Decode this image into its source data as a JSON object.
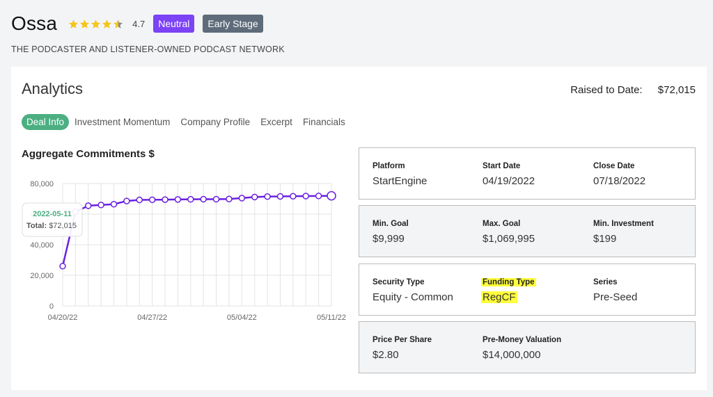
{
  "header": {
    "company_name": "Ossa",
    "rating": "4.7",
    "badges": [
      "Neutral",
      "Early Stage"
    ],
    "tagline": "THE PODCASTER AND LISTENER-OWNED PODCAST NETWORK"
  },
  "analytics": {
    "title": "Analytics",
    "raised_label": "Raised to Date:",
    "raised_value": "$72,015",
    "tabs": [
      "Deal Info",
      "Investment Momentum",
      "Company Profile",
      "Excerpt",
      "Financials"
    ],
    "active_tab": "Deal Info"
  },
  "colors": {
    "accent": "#7b42f6",
    "tab_active": "#4caf82",
    "highlight": "#ffff3b",
    "star": "#f5c518"
  },
  "chart_data": {
    "type": "line",
    "title": "Aggregate Commitments $",
    "x_tick_labels": [
      "04/20/22",
      "04/27/22",
      "05/04/22",
      "05/11/22"
    ],
    "y_tick_labels": [
      "0",
      "20,000",
      "40,000",
      "60,000",
      "80,000"
    ],
    "ylim": [
      0,
      80000
    ],
    "x": [
      "2022-04-20",
      "2022-04-21",
      "2022-04-22",
      "2022-04-23",
      "2022-04-24",
      "2022-04-25",
      "2022-04-26",
      "2022-04-27",
      "2022-04-28",
      "2022-04-29",
      "2022-04-30",
      "2022-05-01",
      "2022-05-02",
      "2022-05-03",
      "2022-05-04",
      "2022-05-05",
      "2022-05-06",
      "2022-05-07",
      "2022-05-08",
      "2022-05-09",
      "2022-05-10",
      "2022-05-11"
    ],
    "values": [
      26000,
      61500,
      65500,
      66000,
      66500,
      68600,
      69300,
      69400,
      69500,
      69600,
      69700,
      69800,
      69800,
      69900,
      70500,
      71200,
      71500,
      71600,
      71700,
      71800,
      71900,
      72015
    ],
    "grid": true,
    "line_color": "#6a1fe0",
    "tooltip": {
      "date": "2022-05-11",
      "label": "Total:",
      "value": "$72,015"
    }
  },
  "deal_info": [
    [
      {
        "label": "Platform",
        "value": "StartEngine"
      },
      {
        "label": "Start Date",
        "value": "04/19/2022"
      },
      {
        "label": "Close Date",
        "value": "07/18/2022"
      }
    ],
    [
      {
        "label": "Min. Goal",
        "value": "$9,999"
      },
      {
        "label": "Max. Goal",
        "value": "$1,069,995"
      },
      {
        "label": "Min. Investment",
        "value": "$199"
      }
    ],
    [
      {
        "label": "Security Type",
        "value": "Equity - Common"
      },
      {
        "label": "Funding Type",
        "value": "RegCF"
      },
      {
        "label": "Series",
        "value": "Pre-Seed"
      }
    ],
    [
      {
        "label": "Price Per Share",
        "value": "$2.80"
      },
      {
        "label": "Pre-Money Valuation",
        "value": "$14,000,000"
      }
    ]
  ]
}
